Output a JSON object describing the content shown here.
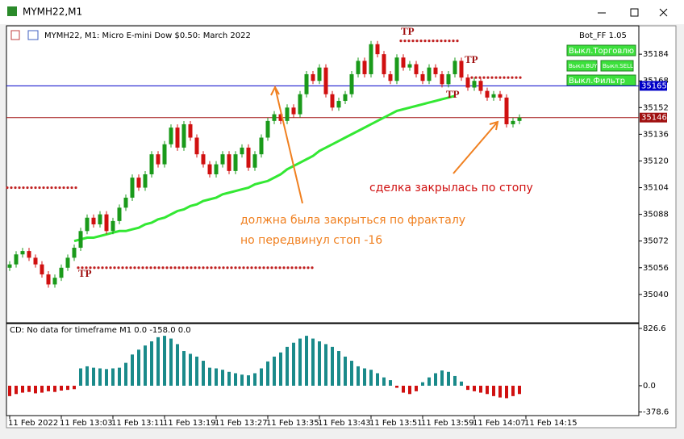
{
  "window": {
    "title": "MYMH22,M1"
  },
  "chart_data": {
    "type": "candlestick",
    "header": "MYMH22, M1:  Micro E-mini Dow $0.50: March 2022",
    "bot": {
      "name": "Bot_FF 1.05",
      "buttons": [
        "Выкл.Торговлю",
        "Выкл.BUY",
        "Выкл.SELL",
        "Выкл.Фильтр"
      ]
    },
    "ylim": [
      35023,
      35201
    ],
    "yticks": [
      35184,
      35168,
      35152,
      35136,
      35120,
      35104,
      35088,
      35072,
      35056,
      35040
    ],
    "lines": [
      {
        "price": 35165,
        "color": "#0000c8"
      },
      {
        "price": 35146,
        "color": "#a01010"
      }
    ],
    "up_color": "#1a9a1a",
    "down_color": "#d01010",
    "first_open": 35056,
    "close": [
      35058,
      35064,
      35066,
      35062,
      35058,
      35052,
      35046,
      35050,
      35056,
      35062,
      35068,
      35078,
      35086,
      35082,
      35088,
      35078,
      35084,
      35092,
      35098,
      35110,
      35104,
      35112,
      35124,
      35118,
      35130,
      35140,
      35128,
      35142,
      35134,
      35124,
      35118,
      35112,
      35118,
      35124,
      35114,
      35124,
      35128,
      35116,
      35124,
      35134,
      35144,
      35148,
      35144,
      35152,
      35148,
      35160,
      35172,
      35168,
      35176,
      35160,
      35152,
      35156,
      35160,
      35172,
      35180,
      35172,
      35190,
      35184,
      35172,
      35168,
      35182,
      35176,
      35178,
      35172,
      35168,
      35176,
      35172,
      35166,
      35172,
      35180,
      35170,
      35164,
      35168,
      35162,
      35158,
      35160,
      35158,
      35142,
      35144,
      35146
    ],
    "ma": {
      "color": "#33e833",
      "values": [
        null,
        null,
        null,
        null,
        null,
        null,
        null,
        null,
        null,
        null,
        35072,
        35073,
        35074,
        35074,
        35075,
        35076,
        35077,
        35078,
        35078,
        35079,
        35080,
        35082,
        35083,
        35085,
        35086,
        35088,
        35090,
        35091,
        35093,
        35094,
        35096,
        35097,
        35098,
        35100,
        35101,
        35102,
        35103,
        35104,
        35106,
        35107,
        35108,
        35110,
        35112,
        35115,
        35117,
        35119,
        35121,
        35123,
        35126,
        35128,
        35130,
        35132,
        35134,
        35136,
        35138,
        35140,
        35142,
        35144,
        35146,
        35148,
        35150,
        35151,
        35152,
        35153,
        35154,
        35155,
        35156,
        35157,
        35158,
        35159,
        null,
        null,
        null,
        null,
        null,
        null,
        null,
        null,
        null,
        null
      ]
    },
    "levels": [
      {
        "price": 35104,
        "bars": [
          0,
          10
        ]
      },
      {
        "price": 35056,
        "bars": [
          11,
          47
        ]
      },
      {
        "price": 35192,
        "bars": [
          61,
          69
        ]
      },
      {
        "price": 35170,
        "bars": [
          72,
          79
        ]
      }
    ],
    "tp_labels": [
      "TP",
      "TP",
      "TP",
      "TP"
    ],
    "annotations": [
      "сделка закрылась по стопу",
      "должна была закрыться по фракталу",
      "но передвинул стоп -16"
    ],
    "times": [
      "11 Feb 2022",
      "11 Feb 13:03",
      "11 Feb 13:11",
      "11 Feb 13:19",
      "11 Feb 13:27",
      "11 Feb 13:35",
      "11 Feb 13:43",
      "11 Feb 13:51",
      "11 Feb 13:59",
      "11 Feb 14:07",
      "11 Feb 14:15"
    ],
    "indicator": {
      "label": "CD: No data for timeframe M1 0.0 -158.0 0.0",
      "ylim": [
        -431,
        896
      ],
      "yticks": [
        {
          "value": 826.6,
          "label": "826.6"
        },
        {
          "value": 0,
          "label": "0.0"
        },
        {
          "value": -378.6,
          "label": "-378.6"
        }
      ],
      "pos_color": "#1a8a8a",
      "neg_color": "#d01010",
      "values": [
        -150,
        -120,
        -100,
        -90,
        -110,
        -100,
        -80,
        -90,
        -70,
        -60,
        -50,
        250,
        280,
        260,
        250,
        240,
        250,
        260,
        330,
        450,
        520,
        580,
        640,
        700,
        720,
        680,
        600,
        500,
        460,
        420,
        360,
        260,
        250,
        230,
        200,
        180,
        160,
        150,
        180,
        250,
        350,
        420,
        480,
        560,
        620,
        680,
        720,
        680,
        640,
        600,
        560,
        500,
        420,
        360,
        280,
        250,
        230,
        180,
        120,
        80,
        -30,
        -100,
        -120,
        -80,
        50,
        120,
        180,
        220,
        200,
        140,
        60,
        -60,
        -80,
        -100,
        -120,
        -150,
        -170,
        -180,
        -150,
        -120
      ]
    }
  }
}
